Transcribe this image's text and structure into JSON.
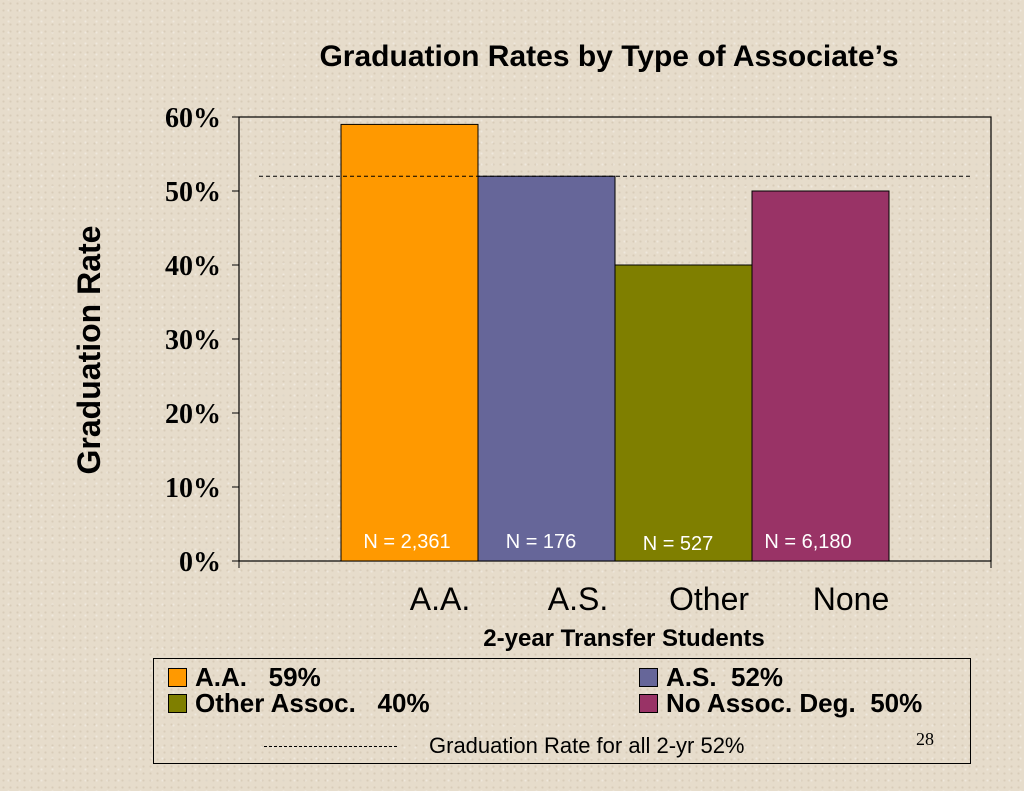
{
  "chart_data": {
    "type": "bar",
    "title": "Graduation Rates by Type of Associate’s",
    "ylabel": "Graduation Rate",
    "xlabel": "2-year Transfer Students",
    "categories": [
      "A.A.",
      "A.S.",
      "Other",
      "None"
    ],
    "values": [
      59,
      52,
      40,
      50
    ],
    "colors": [
      "#ff9900",
      "#666699",
      "#7f7f00",
      "#993366"
    ],
    "sample_labels": [
      "N = 2,361",
      "N = 176",
      "N = 527",
      "N = 6,180"
    ],
    "yticks": [
      "0%",
      "10%",
      "20%",
      "30%",
      "40%",
      "50%",
      "60%"
    ],
    "ylim": [
      0,
      60
    ],
    "reference_line": {
      "value": 52,
      "style": "dashed"
    },
    "grid": false
  },
  "legend": {
    "items": [
      {
        "label": "A.A.   59%",
        "color": "#ff9900"
      },
      {
        "label": "A.S.  52%",
        "color": "#666699"
      },
      {
        "label": "Other Assoc.   40%",
        "color": "#7f7f00"
      },
      {
        "label": "No Assoc. Deg.  50%",
        "color": "#993366"
      }
    ],
    "avg_dash_label": "--------------------",
    "avg_text": "Graduation Rate for all 2-yr 52%"
  },
  "page_number": "28"
}
